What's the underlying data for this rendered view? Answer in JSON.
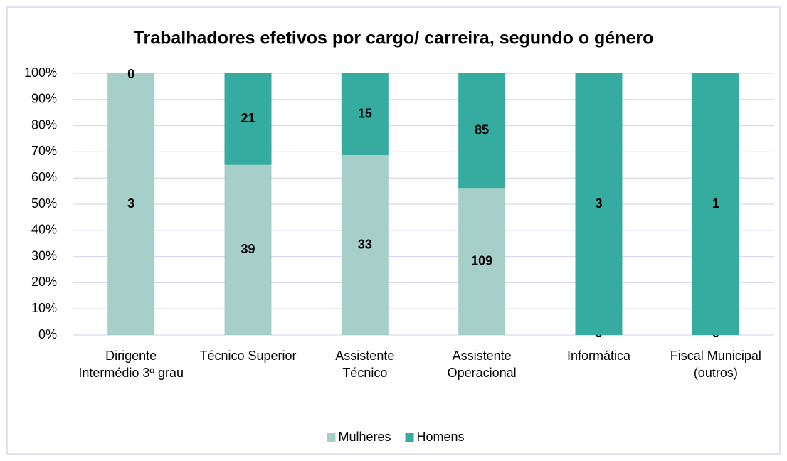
{
  "chart_data": {
    "type": "bar",
    "stacked": "percent",
    "title": "Trabalhadores efetivos por cargo/ carreira, segundo o género",
    "categories": [
      "Dirigente Intermédio 3º grau",
      "Técnico Superior",
      "Assistente Técnico",
      "Assistente Operacional",
      "Informática",
      "Fiscal Municipal (outros)"
    ],
    "series": [
      {
        "name": "Mulheres",
        "color": "#a7cfca",
        "values": [
          3,
          39,
          33,
          109,
          0,
          0
        ]
      },
      {
        "name": "Homens",
        "color": "#36aba0",
        "values": [
          0,
          21,
          15,
          85,
          3,
          1
        ]
      }
    ],
    "ylim": [
      0,
      100
    ],
    "yticks": [
      {
        "value": 0,
        "label": "0%"
      },
      {
        "value": 10,
        "label": "10%"
      },
      {
        "value": 20,
        "label": "20%"
      },
      {
        "value": 30,
        "label": "30%"
      },
      {
        "value": 40,
        "label": "40%"
      },
      {
        "value": 50,
        "label": "50%"
      },
      {
        "value": 60,
        "label": "60%"
      },
      {
        "value": 70,
        "label": "70%"
      },
      {
        "value": 80,
        "label": "80%"
      },
      {
        "value": 90,
        "label": "90%"
      },
      {
        "value": 100,
        "label": "100%"
      }
    ],
    "grid": true,
    "legend": "bottom"
  }
}
